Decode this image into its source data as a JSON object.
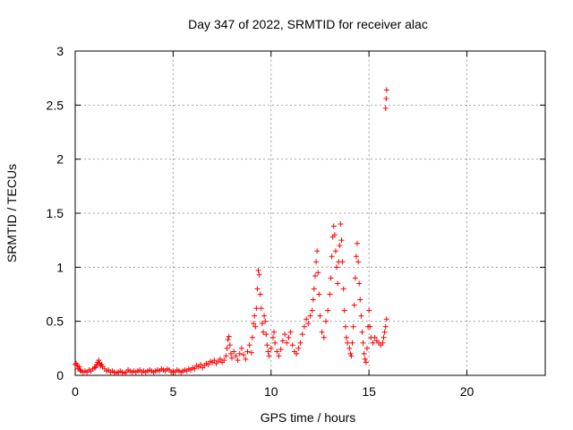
{
  "chart_data": {
    "type": "scatter",
    "title": "Day 347 of 2022, SRMTID for receiver alac",
    "xlabel": "GPS time / hours",
    "ylabel": "SRMTID / TECUs",
    "xlim": [
      0,
      24
    ],
    "ylim": [
      0,
      3
    ],
    "xticks": [
      0,
      5,
      10,
      15,
      20
    ],
    "yticks": [
      0,
      0.5,
      1,
      1.5,
      2,
      2.5,
      3
    ],
    "xtick_labels": [
      "0",
      "5",
      "10",
      "15",
      "20"
    ],
    "ytick_labels": [
      "0",
      "0.5",
      "1",
      "1.5",
      "2",
      "2.5",
      "3"
    ],
    "grid": true,
    "marker": "+",
    "color": "#ff0000",
    "series": [
      {
        "name": "SRMTID",
        "points": [
          [
            0.0,
            0.1
          ],
          [
            0.05,
            0.11
          ],
          [
            0.1,
            0.09
          ],
          [
            0.15,
            0.06
          ],
          [
            0.2,
            0.08
          ],
          [
            0.25,
            0.05
          ],
          [
            0.3,
            0.04
          ],
          [
            0.4,
            0.03
          ],
          [
            0.5,
            0.04
          ],
          [
            0.6,
            0.03
          ],
          [
            0.7,
            0.05
          ],
          [
            0.8,
            0.04
          ],
          [
            0.9,
            0.06
          ],
          [
            1.0,
            0.07
          ],
          [
            1.05,
            0.08
          ],
          [
            1.1,
            0.1
          ],
          [
            1.15,
            0.12
          ],
          [
            1.2,
            0.14
          ],
          [
            1.25,
            0.11
          ],
          [
            1.3,
            0.09
          ],
          [
            1.35,
            0.1
          ],
          [
            1.4,
            0.08
          ],
          [
            1.5,
            0.06
          ],
          [
            1.6,
            0.04
          ],
          [
            1.7,
            0.05
          ],
          [
            1.8,
            0.03
          ],
          [
            1.9,
            0.04
          ],
          [
            2.0,
            0.03
          ],
          [
            2.1,
            0.02
          ],
          [
            2.2,
            0.03
          ],
          [
            2.3,
            0.04
          ],
          [
            2.4,
            0.03
          ],
          [
            2.5,
            0.02
          ],
          [
            2.6,
            0.03
          ],
          [
            2.7,
            0.05
          ],
          [
            2.8,
            0.04
          ],
          [
            2.9,
            0.03
          ],
          [
            3.0,
            0.04
          ],
          [
            3.1,
            0.03
          ],
          [
            3.2,
            0.04
          ],
          [
            3.3,
            0.05
          ],
          [
            3.4,
            0.03
          ],
          [
            3.5,
            0.04
          ],
          [
            3.6,
            0.03
          ],
          [
            3.7,
            0.04
          ],
          [
            3.8,
            0.05
          ],
          [
            3.9,
            0.04
          ],
          [
            4.0,
            0.03
          ],
          [
            4.1,
            0.04
          ],
          [
            4.2,
            0.05
          ],
          [
            4.3,
            0.04
          ],
          [
            4.4,
            0.06
          ],
          [
            4.5,
            0.05
          ],
          [
            4.6,
            0.04
          ],
          [
            4.7,
            0.06
          ],
          [
            4.8,
            0.05
          ],
          [
            4.9,
            0.03
          ],
          [
            5.0,
            0.04
          ],
          [
            5.1,
            0.03
          ],
          [
            5.2,
            0.05
          ],
          [
            5.3,
            0.04
          ],
          [
            5.4,
            0.03
          ],
          [
            5.5,
            0.04
          ],
          [
            5.6,
            0.05
          ],
          [
            5.7,
            0.04
          ],
          [
            5.8,
            0.06
          ],
          [
            5.9,
            0.05
          ],
          [
            6.0,
            0.07
          ],
          [
            6.1,
            0.06
          ],
          [
            6.2,
            0.09
          ],
          [
            6.3,
            0.08
          ],
          [
            6.4,
            0.1
          ],
          [
            6.5,
            0.07
          ],
          [
            6.6,
            0.09
          ],
          [
            6.7,
            0.11
          ],
          [
            6.8,
            0.1
          ],
          [
            6.9,
            0.13
          ],
          [
            7.0,
            0.12
          ],
          [
            7.1,
            0.14
          ],
          [
            7.2,
            0.11
          ],
          [
            7.3,
            0.13
          ],
          [
            7.4,
            0.15
          ],
          [
            7.5,
            0.12
          ],
          [
            7.6,
            0.14
          ],
          [
            7.7,
            0.18
          ],
          [
            7.75,
            0.25
          ],
          [
            7.8,
            0.33
          ],
          [
            7.85,
            0.36
          ],
          [
            7.9,
            0.28
          ],
          [
            7.95,
            0.2
          ],
          [
            8.0,
            0.16
          ],
          [
            8.1,
            0.22
          ],
          [
            8.2,
            0.18
          ],
          [
            8.3,
            0.14
          ],
          [
            8.4,
            0.2
          ],
          [
            8.5,
            0.25
          ],
          [
            8.6,
            0.19
          ],
          [
            8.7,
            0.15
          ],
          [
            8.8,
            0.22
          ],
          [
            8.9,
            0.28
          ],
          [
            9.0,
            0.21
          ],
          [
            9.05,
            0.35
          ],
          [
            9.1,
            0.48
          ],
          [
            9.15,
            0.55
          ],
          [
            9.2,
            0.45
          ],
          [
            9.25,
            0.62
          ],
          [
            9.3,
            0.8
          ],
          [
            9.35,
            0.97
          ],
          [
            9.4,
            0.93
          ],
          [
            9.45,
            0.75
          ],
          [
            9.5,
            0.62
          ],
          [
            9.55,
            0.48
          ],
          [
            9.6,
            0.4
          ],
          [
            9.65,
            0.55
          ],
          [
            9.7,
            0.5
          ],
          [
            9.75,
            0.38
          ],
          [
            9.8,
            0.28
          ],
          [
            9.85,
            0.22
          ],
          [
            9.9,
            0.18
          ],
          [
            10.0,
            0.25
          ],
          [
            10.1,
            0.35
          ],
          [
            10.15,
            0.4
          ],
          [
            10.2,
            0.3
          ],
          [
            10.3,
            0.22
          ],
          [
            10.4,
            0.18
          ],
          [
            10.5,
            0.24
          ],
          [
            10.6,
            0.32
          ],
          [
            10.7,
            0.38
          ],
          [
            10.8,
            0.3
          ],
          [
            10.9,
            0.35
          ],
          [
            11.0,
            0.4
          ],
          [
            11.1,
            0.28
          ],
          [
            11.2,
            0.22
          ],
          [
            11.3,
            0.2
          ],
          [
            11.4,
            0.25
          ],
          [
            11.5,
            0.3
          ],
          [
            11.6,
            0.38
          ],
          [
            11.7,
            0.45
          ],
          [
            11.8,
            0.52
          ],
          [
            11.9,
            0.48
          ],
          [
            12.0,
            0.55
          ],
          [
            12.1,
            0.6
          ],
          [
            12.15,
            0.7
          ],
          [
            12.2,
            0.8
          ],
          [
            12.25,
            0.92
          ],
          [
            12.3,
            1.05
          ],
          [
            12.35,
            1.15
          ],
          [
            12.4,
            0.95
          ],
          [
            12.45,
            0.75
          ],
          [
            12.5,
            0.55
          ],
          [
            12.6,
            0.4
          ],
          [
            12.7,
            0.35
          ],
          [
            12.8,
            0.5
          ],
          [
            12.9,
            0.6
          ],
          [
            13.0,
            0.75
          ],
          [
            13.05,
            0.9
          ],
          [
            13.1,
            1.1
          ],
          [
            13.15,
            1.28
          ],
          [
            13.2,
            1.38
          ],
          [
            13.25,
            1.3
          ],
          [
            13.3,
            1.15
          ],
          [
            13.35,
            1.0
          ],
          [
            13.4,
            0.85
          ],
          [
            13.45,
            1.05
          ],
          [
            13.5,
            1.2
          ],
          [
            13.55,
            1.4
          ],
          [
            13.6,
            1.25
          ],
          [
            13.65,
            1.05
          ],
          [
            13.7,
            0.8
          ],
          [
            13.75,
            0.6
          ],
          [
            13.8,
            0.45
          ],
          [
            13.85,
            0.35
          ],
          [
            13.9,
            0.3
          ],
          [
            14.0,
            0.25
          ],
          [
            14.05,
            0.2
          ],
          [
            14.1,
            0.18
          ],
          [
            14.15,
            0.3
          ],
          [
            14.2,
            0.45
          ],
          [
            14.25,
            0.65
          ],
          [
            14.3,
            0.9
          ],
          [
            14.35,
            1.1
          ],
          [
            14.4,
            1.22
          ],
          [
            14.45,
            1.05
          ],
          [
            14.5,
            0.85
          ],
          [
            14.55,
            0.7
          ],
          [
            14.6,
            0.55
          ],
          [
            14.65,
            0.4
          ],
          [
            14.7,
            0.3
          ],
          [
            14.75,
            0.2
          ],
          [
            14.8,
            0.15
          ],
          [
            14.85,
            0.12
          ],
          [
            14.9,
            0.25
          ],
          [
            14.95,
            0.45
          ],
          [
            15.0,
            0.6
          ],
          [
            15.05,
            0.45
          ],
          [
            15.1,
            0.35
          ],
          [
            15.2,
            0.3
          ],
          [
            15.3,
            0.35
          ],
          [
            15.4,
            0.32
          ],
          [
            15.5,
            0.3
          ],
          [
            15.6,
            0.28
          ],
          [
            15.7,
            0.3
          ],
          [
            15.75,
            0.35
          ],
          [
            15.8,
            0.4
          ],
          [
            15.85,
            0.45
          ],
          [
            15.9,
            0.52
          ],
          [
            15.85,
            2.47
          ],
          [
            15.88,
            2.56
          ],
          [
            15.9,
            2.64
          ]
        ]
      }
    ]
  }
}
